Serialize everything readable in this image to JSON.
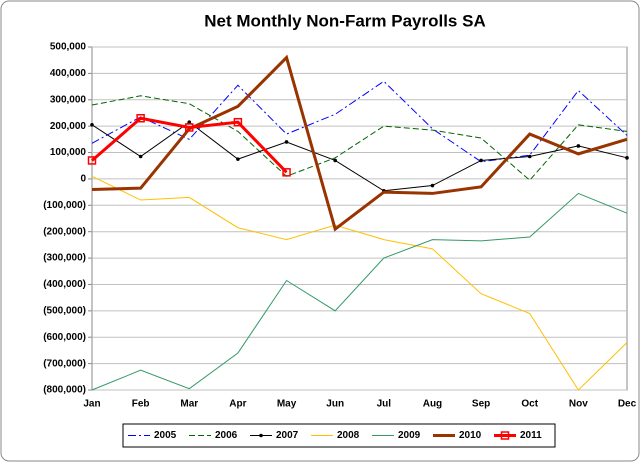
{
  "chart_data": {
    "type": "line",
    "title": "Net Monthly Non-Farm Payrolls SA",
    "categories": [
      "Jan",
      "Feb",
      "Mar",
      "Apr",
      "May",
      "Jun",
      "Jul",
      "Aug",
      "Sep",
      "Oct",
      "Nov",
      "Dec"
    ],
    "ylim": [
      -800000,
      500000
    ],
    "yticks": [
      {
        "value": -800000,
        "label": "(800,000)"
      },
      {
        "value": -700000,
        "label": "(700,000)"
      },
      {
        "value": -600000,
        "label": "(600,000)"
      },
      {
        "value": -500000,
        "label": "(500,000)"
      },
      {
        "value": -400000,
        "label": "(400,000)"
      },
      {
        "value": -300000,
        "label": "(300,000)"
      },
      {
        "value": -200000,
        "label": "(200,000)"
      },
      {
        "value": -100000,
        "label": "(100,000)"
      },
      0,
      {
        "value": 100000,
        "label": "100,000"
      },
      {
        "value": 200000,
        "label": "200,000"
      },
      {
        "value": 300000,
        "label": "300,000"
      },
      {
        "value": 400000,
        "label": "400,000"
      },
      {
        "value": 500000,
        "label": "500,000"
      }
    ],
    "grid": true,
    "legend": "bottom",
    "series": [
      {
        "name": "2005",
        "color": "#0000ff",
        "dash": "8 3 2 3",
        "width": 1,
        "values": [
          135000,
          235000,
          150000,
          355000,
          170000,
          245000,
          370000,
          190000,
          65000,
          90000,
          335000,
          165000
        ]
      },
      {
        "name": "2006",
        "color": "#006400",
        "dash": "6 3",
        "width": 1,
        "values": [
          280000,
          315000,
          285000,
          180000,
          10000,
          80000,
          200000,
          185000,
          155000,
          -5000,
          205000,
          180000
        ]
      },
      {
        "name": "2007",
        "color": "#000000",
        "dash": "",
        "width": 1,
        "marker": "dot",
        "values": [
          205000,
          85000,
          215000,
          75000,
          140000,
          70000,
          -45000,
          -25000,
          70000,
          85000,
          125000,
          80000
        ]
      },
      {
        "name": "2008",
        "color": "#ffc000",
        "dash": "",
        "width": 1,
        "values": [
          10000,
          -80000,
          -70000,
          -185000,
          -230000,
          -175000,
          -230000,
          -265000,
          -435000,
          -510000,
          -800000,
          -620000
        ]
      },
      {
        "name": "2009",
        "color": "#339966",
        "dash": "",
        "width": 1,
        "values": [
          -800000,
          -725000,
          -795000,
          -660000,
          -385000,
          -500000,
          -300000,
          -230000,
          -235000,
          -220000,
          -55000,
          -130000
        ]
      },
      {
        "name": "2010",
        "color": "#993300",
        "dash": "",
        "width": 3,
        "values": [
          -40000,
          -35000,
          190000,
          275000,
          460000,
          -190000,
          -50000,
          -55000,
          -30000,
          170000,
          95000,
          150000
        ]
      },
      {
        "name": "2011",
        "color": "#ff0000",
        "dash": "",
        "width": 3,
        "marker": "square",
        "values": [
          70000,
          230000,
          195000,
          215000,
          25000,
          null,
          null,
          null,
          null,
          null,
          null,
          null
        ]
      }
    ]
  }
}
